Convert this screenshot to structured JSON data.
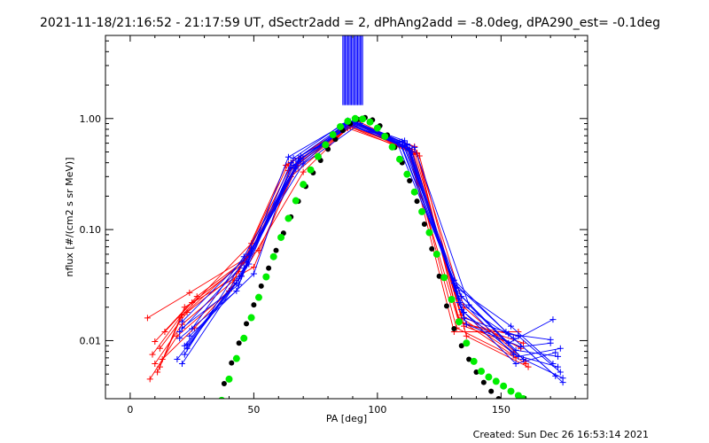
{
  "chart_data": {
    "type": "line",
    "title": "2021-11-18/21:16:52 - 21:17:59 UT, dSectr2add = 2, dPhAng2add = -8.0deg, dPA290_est= -0.1deg",
    "xlabel": "PA [deg]",
    "ylabel": "nflux [#/(cm2 s sr MeV)]",
    "xlim": [
      -10,
      185
    ],
    "ylim": [
      0.003,
      5.6
    ],
    "yscale": "log",
    "grid": false,
    "x_ticks": [
      {
        "value": 0,
        "label": "0"
      },
      {
        "value": 50,
        "label": "50"
      },
      {
        "value": 100,
        "label": "100"
      },
      {
        "value": 150,
        "label": "150"
      }
    ],
    "y_ticks": [
      {
        "value": 0.01,
        "label": "0.01"
      },
      {
        "value": 0.1,
        "label": "0.10"
      },
      {
        "value": 1.0,
        "label": "1.00"
      }
    ],
    "red_series": [
      {
        "name": "",
        "color": "#ff0000",
        "x": [
          8,
          19,
          40,
          63,
          88,
          112,
          133,
          157
        ],
        "y": [
          0.0045,
          0.011,
          0.028,
          0.38,
          0.86,
          0.55,
          0.0145,
          0.011
        ]
      },
      {
        "name": "",
        "color": "#ff0000",
        "x": [
          10,
          21,
          42,
          64,
          89,
          114,
          134,
          158
        ],
        "y": [
          0.0062,
          0.014,
          0.035,
          0.34,
          0.88,
          0.5,
          0.017,
          0.0085
        ]
      },
      {
        "name": "",
        "color": "#ff0000",
        "x": [
          12,
          23,
          44,
          66,
          90,
          115,
          135,
          160
        ],
        "y": [
          0.0085,
          0.018,
          0.042,
          0.42,
          0.92,
          0.56,
          0.02,
          0.0065
        ]
      },
      {
        "name": "",
        "color": "#ff0000",
        "x": [
          14,
          25,
          46,
          67,
          91,
          116,
          133,
          159
        ],
        "y": [
          0.012,
          0.022,
          0.05,
          0.36,
          0.9,
          0.48,
          0.015,
          0.0095
        ]
      },
      {
        "name": "",
        "color": "#ff0000",
        "x": [
          9,
          20,
          48,
          68,
          90,
          113,
          132,
          156
        ],
        "y": [
          0.0075,
          0.016,
          0.058,
          0.4,
          0.87,
          0.52,
          0.013,
          0.007
        ]
      },
      {
        "name": "",
        "color": "#ff0000",
        "x": [
          11,
          22,
          50,
          65,
          89,
          117,
          136,
          161
        ],
        "y": [
          0.0052,
          0.02,
          0.046,
          0.3,
          0.84,
          0.46,
          0.011,
          0.0058
        ]
      },
      {
        "name": "",
        "color": "#ff0000",
        "x": [
          7,
          24,
          52,
          69,
          92,
          112,
          131,
          157
        ],
        "y": [
          0.016,
          0.027,
          0.065,
          0.44,
          0.95,
          0.58,
          0.012,
          0.012
        ]
      },
      {
        "name": "",
        "color": "#ff0000",
        "x": [
          13,
          26,
          45,
          70,
          88,
          115,
          134,
          155
        ],
        "y": [
          0.0068,
          0.013,
          0.038,
          0.33,
          0.82,
          0.5,
          0.016,
          0.0078
        ]
      },
      {
        "name": "",
        "color": "#ff0000",
        "x": [
          10,
          27,
          47,
          66,
          91,
          114,
          135,
          158
        ],
        "y": [
          0.0098,
          0.025,
          0.054,
          0.37,
          0.9,
          0.53,
          0.0135,
          0.0088
        ]
      },
      {
        "name": "",
        "color": "#ff0000",
        "x": [
          12,
          21,
          49,
          64,
          90,
          116,
          133,
          160
        ],
        "y": [
          0.0058,
          0.017,
          0.075,
          0.39,
          0.93,
          0.49,
          0.0155,
          0.0062
        ]
      }
    ],
    "blue_series": [
      {
        "name": "",
        "color": "#0000ff",
        "x": [
          20,
          43,
          64,
          87,
          108,
          131,
          152,
          175
        ],
        "y": [
          0.0105,
          0.028,
          0.45,
          0.9,
          0.6,
          0.035,
          0.012,
          0.0042
        ]
      },
      {
        "name": "",
        "color": "#0000ff",
        "x": [
          21,
          44,
          65,
          88,
          110,
          132,
          153,
          171
        ],
        "y": [
          0.013,
          0.032,
          0.4,
          0.92,
          0.56,
          0.028,
          0.0095,
          0.0155
        ]
      },
      {
        "name": "",
        "color": "#0000ff",
        "x": [
          22,
          45,
          66,
          89,
          111,
          133,
          155,
          173
        ],
        "y": [
          0.009,
          0.038,
          0.38,
          0.94,
          0.63,
          0.024,
          0.0075,
          0.0058
        ]
      },
      {
        "name": "",
        "color": "#0000ff",
        "x": [
          23,
          46,
          67,
          90,
          112,
          134,
          156,
          172
        ],
        "y": [
          0.0085,
          0.045,
          0.35,
          0.95,
          0.58,
          0.019,
          0.0062,
          0.0078
        ]
      },
      {
        "name": "",
        "color": "#0000ff",
        "x": [
          20,
          47,
          68,
          91,
          113,
          135,
          157,
          174
        ],
        "y": [
          0.012,
          0.052,
          0.42,
          0.93,
          0.52,
          0.016,
          0.011,
          0.0052
        ]
      },
      {
        "name": "",
        "color": "#0000ff",
        "x": [
          21,
          48,
          69,
          92,
          114,
          136,
          158,
          170
        ],
        "y": [
          0.0148,
          0.06,
          0.46,
          0.91,
          0.5,
          0.014,
          0.0088,
          0.0095
        ]
      },
      {
        "name": "",
        "color": "#0000ff",
        "x": [
          22,
          49,
          70,
          93,
          115,
          137,
          159,
          175
        ],
        "y": [
          0.0075,
          0.068,
          0.39,
          0.9,
          0.55,
          0.021,
          0.0068,
          0.0046
        ]
      },
      {
        "name": "",
        "color": "#0000ff",
        "x": [
          24,
          50,
          66,
          88,
          109,
          132,
          154,
          171
        ],
        "y": [
          0.011,
          0.04,
          0.44,
          0.96,
          0.61,
          0.03,
          0.0135,
          0.0062
        ]
      },
      {
        "name": "",
        "color": "#0000ff",
        "x": [
          19,
          43,
          67,
          89,
          111,
          134,
          156,
          173
        ],
        "y": [
          0.0068,
          0.033,
          0.37,
          0.92,
          0.57,
          0.025,
          0.0082,
          0.0072
        ]
      },
      {
        "name": "",
        "color": "#0000ff",
        "x": [
          25,
          46,
          68,
          90,
          112,
          133,
          155,
          172
        ],
        "y": [
          0.0128,
          0.057,
          0.41,
          0.94,
          0.59,
          0.022,
          0.0105,
          0.0048
        ]
      },
      {
        "name": "",
        "color": "#0000ff",
        "x": [
          23,
          44,
          69,
          91,
          113,
          135,
          157,
          174
        ],
        "y": [
          0.0092,
          0.036,
          0.43,
          0.93,
          0.54,
          0.018,
          0.0072,
          0.0085
        ]
      },
      {
        "name": "",
        "color": "#0000ff",
        "x": [
          21,
          48,
          65,
          87,
          110,
          131,
          153,
          170
        ],
        "y": [
          0.0062,
          0.049,
          0.36,
          0.89,
          0.62,
          0.033,
          0.0115,
          0.0102
        ]
      }
    ],
    "blue_vertical_bars_x": [
      86,
      86.5,
      87,
      87.5,
      88,
      88.5,
      89,
      89.5,
      90,
      90.5,
      91,
      91.5,
      92,
      92.5,
      93,
      93.5,
      94
    ],
    "green_fit": {
      "color": "#00ee00",
      "x": [
        37,
        40,
        43,
        46,
        49,
        52,
        55,
        58,
        61,
        64,
        67,
        70,
        73,
        76,
        79,
        82,
        85,
        88,
        91,
        94,
        97,
        100,
        103,
        106,
        109,
        112,
        115,
        118,
        121,
        124,
        127,
        130,
        133,
        136,
        139,
        142,
        145,
        148,
        151,
        154,
        157,
        159
      ],
      "y": [
        0.0029,
        0.0045,
        0.0069,
        0.0105,
        0.0161,
        0.0245,
        0.0375,
        0.057,
        0.085,
        0.126,
        0.182,
        0.255,
        0.345,
        0.455,
        0.58,
        0.715,
        0.845,
        0.945,
        1.0,
        0.99,
        0.93,
        0.82,
        0.69,
        0.555,
        0.43,
        0.315,
        0.218,
        0.145,
        0.094,
        0.06,
        0.037,
        0.0235,
        0.0148,
        0.0095,
        0.0065,
        0.0053,
        0.0047,
        0.0043,
        0.0039,
        0.0035,
        0.0032,
        0.003
      ]
    },
    "black_fit": {
      "color": "#000000",
      "x": [
        35,
        38,
        41,
        44,
        47,
        50,
        53,
        56,
        59,
        62,
        65,
        68,
        71,
        74,
        77,
        80,
        83,
        86,
        89,
        92,
        95,
        98,
        101,
        104,
        107,
        110,
        113,
        116,
        119,
        122,
        125,
        128,
        131,
        134,
        137,
        140,
        143,
        146,
        149,
        152
      ],
      "y": [
        0.0027,
        0.0041,
        0.0063,
        0.0095,
        0.0142,
        0.021,
        0.031,
        0.045,
        0.065,
        0.093,
        0.13,
        0.18,
        0.245,
        0.325,
        0.42,
        0.53,
        0.65,
        0.78,
        0.9,
        0.985,
        1.02,
        0.97,
        0.86,
        0.71,
        0.55,
        0.4,
        0.275,
        0.18,
        0.112,
        0.067,
        0.038,
        0.0205,
        0.0128,
        0.009,
        0.0068,
        0.0052,
        0.0042,
        0.0035,
        0.003,
        0.0027
      ]
    }
  },
  "footer": {
    "created": "Created: Sun Dec 26 16:53:14 2021"
  }
}
